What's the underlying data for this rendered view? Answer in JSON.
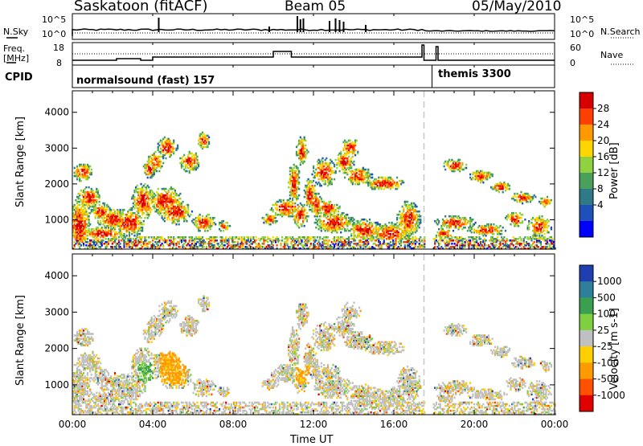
{
  "header": {
    "site": "Saskatoon (fitACF)",
    "beam": "Beam 05",
    "date": "05/May/2010"
  },
  "top_panels": {
    "nsky_label": "N.Sky",
    "nsky_ticks": [
      "10^5",
      "10^0"
    ],
    "nsearch_label": "N.Search",
    "nsearch_ticks": [
      "10^5",
      "10^0"
    ],
    "freq_label_1": "Freq.",
    "freq_label_2": "[MHz]",
    "freq_ticks": [
      "18",
      "8"
    ],
    "nave_label": "Nave",
    "nave_ticks": [
      "60",
      "0"
    ],
    "cpid_label": "CPID",
    "cpid_segments": [
      {
        "name": "normalsound (fast) 157",
        "start_hour": 0
      },
      {
        "name": "themis 3300",
        "start_hour": 17.9
      }
    ]
  },
  "chart_data": [
    {
      "type": "heatmap",
      "title": "",
      "xlabel": "Time UT",
      "ylabel": "Slant Range [km]",
      "x_ticks": [
        "00:00",
        "04:00",
        "08:00",
        "12:00",
        "16:00",
        "20:00",
        "00:00"
      ],
      "x_range_hours": [
        0,
        24
      ],
      "y_ticks": [
        1000,
        2000,
        3000,
        4000
      ],
      "ylim": [
        180,
        4600
      ],
      "colorbar_label": "Power [dB]",
      "colorbar_ticks": [
        "28",
        "24",
        "20",
        "16",
        "12",
        "8",
        "4"
      ],
      "colors": [
        "#d70000",
        "#ff4000",
        "#ff9900",
        "#ffd500",
        "#8fd13f",
        "#4aa05a",
        "#2e7a86",
        "#1f4fb8",
        "#0000ff"
      ]
    },
    {
      "type": "heatmap",
      "title": "",
      "xlabel": "Time UT",
      "ylabel": "Slant Range [km]",
      "x_ticks": [
        "00:00",
        "04:00",
        "08:00",
        "12:00",
        "16:00",
        "20:00",
        "00:00"
      ],
      "x_range_hours": [
        0,
        24
      ],
      "y_ticks": [
        1000,
        2000,
        3000,
        4000
      ],
      "ylim": [
        180,
        4600
      ],
      "colorbar_label": "Velocity [m s-1]",
      "colorbar_ticks": [
        "1000",
        "500",
        "100",
        "25",
        "-25",
        "-100",
        "-500",
        "-1000"
      ],
      "colors": [
        "#1f3fb0",
        "#2f7f9a",
        "#3aa050",
        "#7fd040",
        "#c0c0c0",
        "#ffd000",
        "#ff9a00",
        "#ff5000",
        "#e00000"
      ]
    }
  ],
  "gap_marker_hour": 17.5
}
